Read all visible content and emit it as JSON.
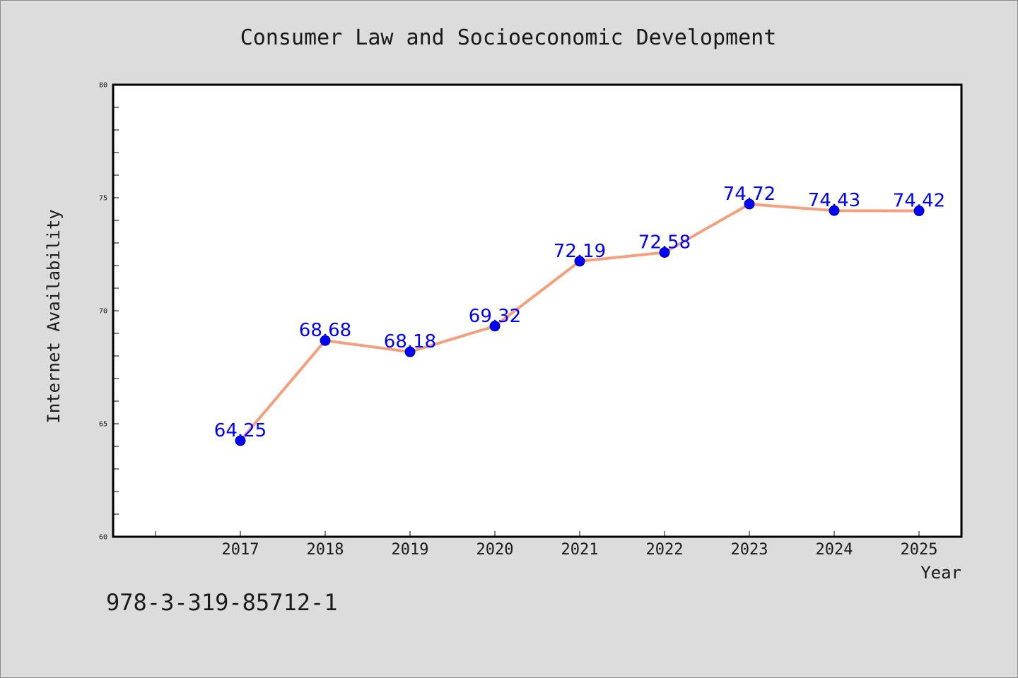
{
  "footer": {
    "isbn": "978-3-319-85712-1"
  },
  "colors": {
    "line": "#f4a07e",
    "marker": "#0000ff",
    "data_label": "#0000ff",
    "plot_bg": "#ffffff",
    "page_bg": "#dcdcdc"
  },
  "chart_data": {
    "type": "line",
    "title": "Consumer Law and Socioeconomic Development",
    "xlabel": "Year",
    "ylabel": "Internet Availability",
    "categories": [
      "2017",
      "2018",
      "2019",
      "2020",
      "2021",
      "2022",
      "2023",
      "2024",
      "2025"
    ],
    "series": [
      {
        "values": [
          64.25,
          68.68,
          68.18,
          69.32,
          72.19,
          72.58,
          74.72,
          74.43,
          74.42
        ],
        "labels": [
          "64.25",
          "68.68",
          "68.18",
          "69.32",
          "72.19",
          "72.58",
          "74.72",
          "74.43",
          "74.42"
        ]
      }
    ],
    "ylim": [
      60,
      80
    ],
    "yticks": [
      "60",
      "65",
      "70",
      "75",
      "80"
    ],
    "grid": false,
    "legend": "none"
  }
}
